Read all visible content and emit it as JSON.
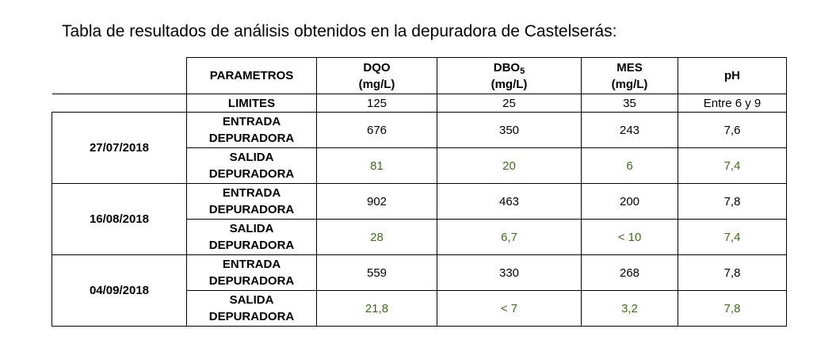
{
  "document": {
    "title": "Tabla de resultados de análisis obtenidos en la depuradora de Castelserás:"
  },
  "table": {
    "header": {
      "parametros": "PARAMETROS",
      "dqo": {
        "name": "DQO",
        "unit": "(mg/L)"
      },
      "dbo": {
        "name": "DBO",
        "sub": "5",
        "unit": "(mg/L)"
      },
      "mes": {
        "name": "MES",
        "unit": "(mg/L)"
      },
      "ph": {
        "name": "pH"
      }
    },
    "limits": {
      "label": "LIMITES",
      "dqo": "125",
      "dbo": "25",
      "mes": "35",
      "ph": "Entre 6 y 9"
    },
    "samples": [
      {
        "date": "27/07/2018",
        "entrada": {
          "label_1": "ENTRADA",
          "label_2": "DEPURADORA",
          "dqo": "676",
          "dbo": "350",
          "mes": "243",
          "ph": "7,6"
        },
        "salida": {
          "label_1": "SALIDA",
          "label_2": "DEPURADORA",
          "dqo": "81",
          "dbo": "20",
          "mes": "6",
          "ph": "7,4"
        }
      },
      {
        "date": "16/08/2018",
        "entrada": {
          "label_1": "ENTRADA",
          "label_2": "DEPURADORA",
          "dqo": "902",
          "dbo": "463",
          "mes": "200",
          "ph": "7,8"
        },
        "salida": {
          "label_1": "SALIDA",
          "label_2": "DEPURADORA",
          "dqo": "28",
          "dbo": "6,7",
          "mes": "< 10",
          "ph": "7,4"
        }
      },
      {
        "date": "04/09/2018",
        "entrada": {
          "label_1": "ENTRADA",
          "label_2": "DEPURADORA",
          "dqo": "559",
          "dbo": "330",
          "mes": "268",
          "ph": "7,8"
        },
        "salida": {
          "label_1": "SALIDA",
          "label_2": "DEPURADORA",
          "dqo": "21,8",
          "dbo": "< 7",
          "mes": "3,2",
          "ph": "7,8"
        }
      }
    ]
  }
}
